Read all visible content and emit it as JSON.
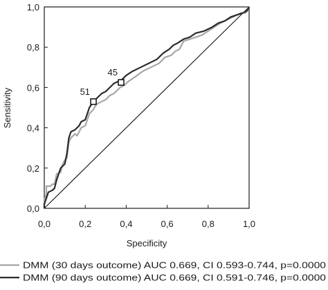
{
  "chart_data": {
    "type": "line",
    "xlabel": "Specificity",
    "ylabel": "Sensitivity",
    "xlim": [
      0,
      1
    ],
    "ylim": [
      0,
      1
    ],
    "x_ticks": [
      "0,0",
      "0,2",
      "0,4",
      "0,6",
      "0,8",
      "1,0"
    ],
    "y_ticks": [
      "0,0",
      "0,2",
      "0,4",
      "0,6",
      "0,8",
      "1,0"
    ],
    "grid": false,
    "legend_position": "bottom",
    "reference_line": {
      "x": [
        0,
        1
      ],
      "y": [
        0,
        1
      ],
      "color": "#1a1a1a"
    },
    "series": [
      {
        "name": "DMM (30 days outcome) AUC 0.669, CI 0.593-0.744, p=0.0000",
        "color": "#a6a6a6",
        "x": [
          0.0,
          0.0,
          0.01,
          0.01,
          0.03,
          0.04,
          0.05,
          0.06,
          0.08,
          0.09,
          0.1,
          0.11,
          0.12,
          0.13,
          0.15,
          0.16,
          0.18,
          0.2,
          0.21,
          0.22,
          0.24,
          0.25,
          0.26,
          0.28,
          0.3,
          0.32,
          0.34,
          0.35,
          0.37,
          0.39,
          0.41,
          0.44,
          0.48,
          0.52,
          0.56,
          0.59,
          0.62,
          0.64,
          0.66,
          0.68,
          0.71,
          0.74,
          0.77,
          0.8,
          0.83,
          0.86,
          0.88,
          0.9,
          0.92,
          0.94,
          0.96,
          0.98,
          0.99,
          1.0
        ],
        "y": [
          0.0,
          0.04,
          0.07,
          0.11,
          0.11,
          0.12,
          0.12,
          0.17,
          0.18,
          0.22,
          0.24,
          0.25,
          0.33,
          0.35,
          0.37,
          0.36,
          0.4,
          0.41,
          0.44,
          0.47,
          0.49,
          0.51,
          0.52,
          0.53,
          0.54,
          0.56,
          0.57,
          0.58,
          0.6,
          0.61,
          0.63,
          0.65,
          0.68,
          0.7,
          0.72,
          0.75,
          0.76,
          0.78,
          0.79,
          0.83,
          0.84,
          0.85,
          0.86,
          0.88,
          0.9,
          0.92,
          0.93,
          0.94,
          0.95,
          0.96,
          0.97,
          0.97,
          0.98,
          1.0
        ]
      },
      {
        "name": "DMM (90 days outcome) AUC 0.669, CI 0.591-0.746, p=0.0000",
        "color": "#2b2b2b",
        "x": [
          0.0,
          0.0,
          0.01,
          0.02,
          0.04,
          0.05,
          0.06,
          0.07,
          0.08,
          0.1,
          0.11,
          0.12,
          0.13,
          0.15,
          0.17,
          0.18,
          0.2,
          0.21,
          0.22,
          0.24,
          0.26,
          0.28,
          0.3,
          0.32,
          0.34,
          0.36,
          0.38,
          0.4,
          0.43,
          0.47,
          0.51,
          0.55,
          0.58,
          0.61,
          0.63,
          0.65,
          0.68,
          0.71,
          0.74,
          0.78,
          0.82,
          0.85,
          0.88,
          0.91,
          0.94,
          0.97,
          0.99,
          1.0
        ],
        "y": [
          0.0,
          0.02,
          0.05,
          0.08,
          0.09,
          0.1,
          0.14,
          0.17,
          0.2,
          0.22,
          0.27,
          0.35,
          0.38,
          0.39,
          0.41,
          0.43,
          0.44,
          0.47,
          0.5,
          0.53,
          0.55,
          0.57,
          0.58,
          0.6,
          0.62,
          0.63,
          0.64,
          0.66,
          0.68,
          0.7,
          0.72,
          0.74,
          0.77,
          0.79,
          0.81,
          0.82,
          0.84,
          0.85,
          0.87,
          0.88,
          0.9,
          0.92,
          0.93,
          0.95,
          0.96,
          0.97,
          0.98,
          1.0
        ]
      }
    ],
    "cut_points": [
      {
        "label": "51",
        "x": 0.24,
        "y": 0.53
      },
      {
        "label": "45",
        "x": 0.375,
        "y": 0.625
      }
    ]
  }
}
